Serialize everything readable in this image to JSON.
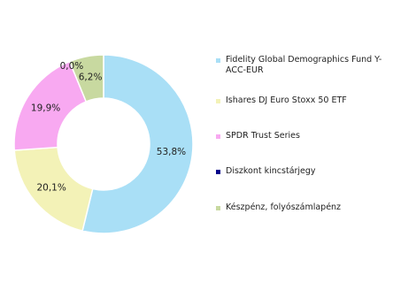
{
  "chart_data": {
    "type": "donut",
    "categories": [
      "Fidelity Global Demographics Fund Y-ACC-EUR",
      "Ishares DJ Euro Stoxx 50 ETF",
      "SPDR Trust Series",
      "Diszkont kincstárjegy",
      "Készpénz, folyószámlapénz"
    ],
    "values": [
      53.8,
      20.1,
      19.9,
      0.0,
      6.2
    ],
    "value_labels": [
      "53,8%",
      "20,1%",
      "19,9%",
      "0,0%",
      "6,2%"
    ],
    "colors": [
      "#a9dff6",
      "#f3f2b7",
      "#f8a9f1",
      "#00008b",
      "#c8d9a0"
    ]
  }
}
